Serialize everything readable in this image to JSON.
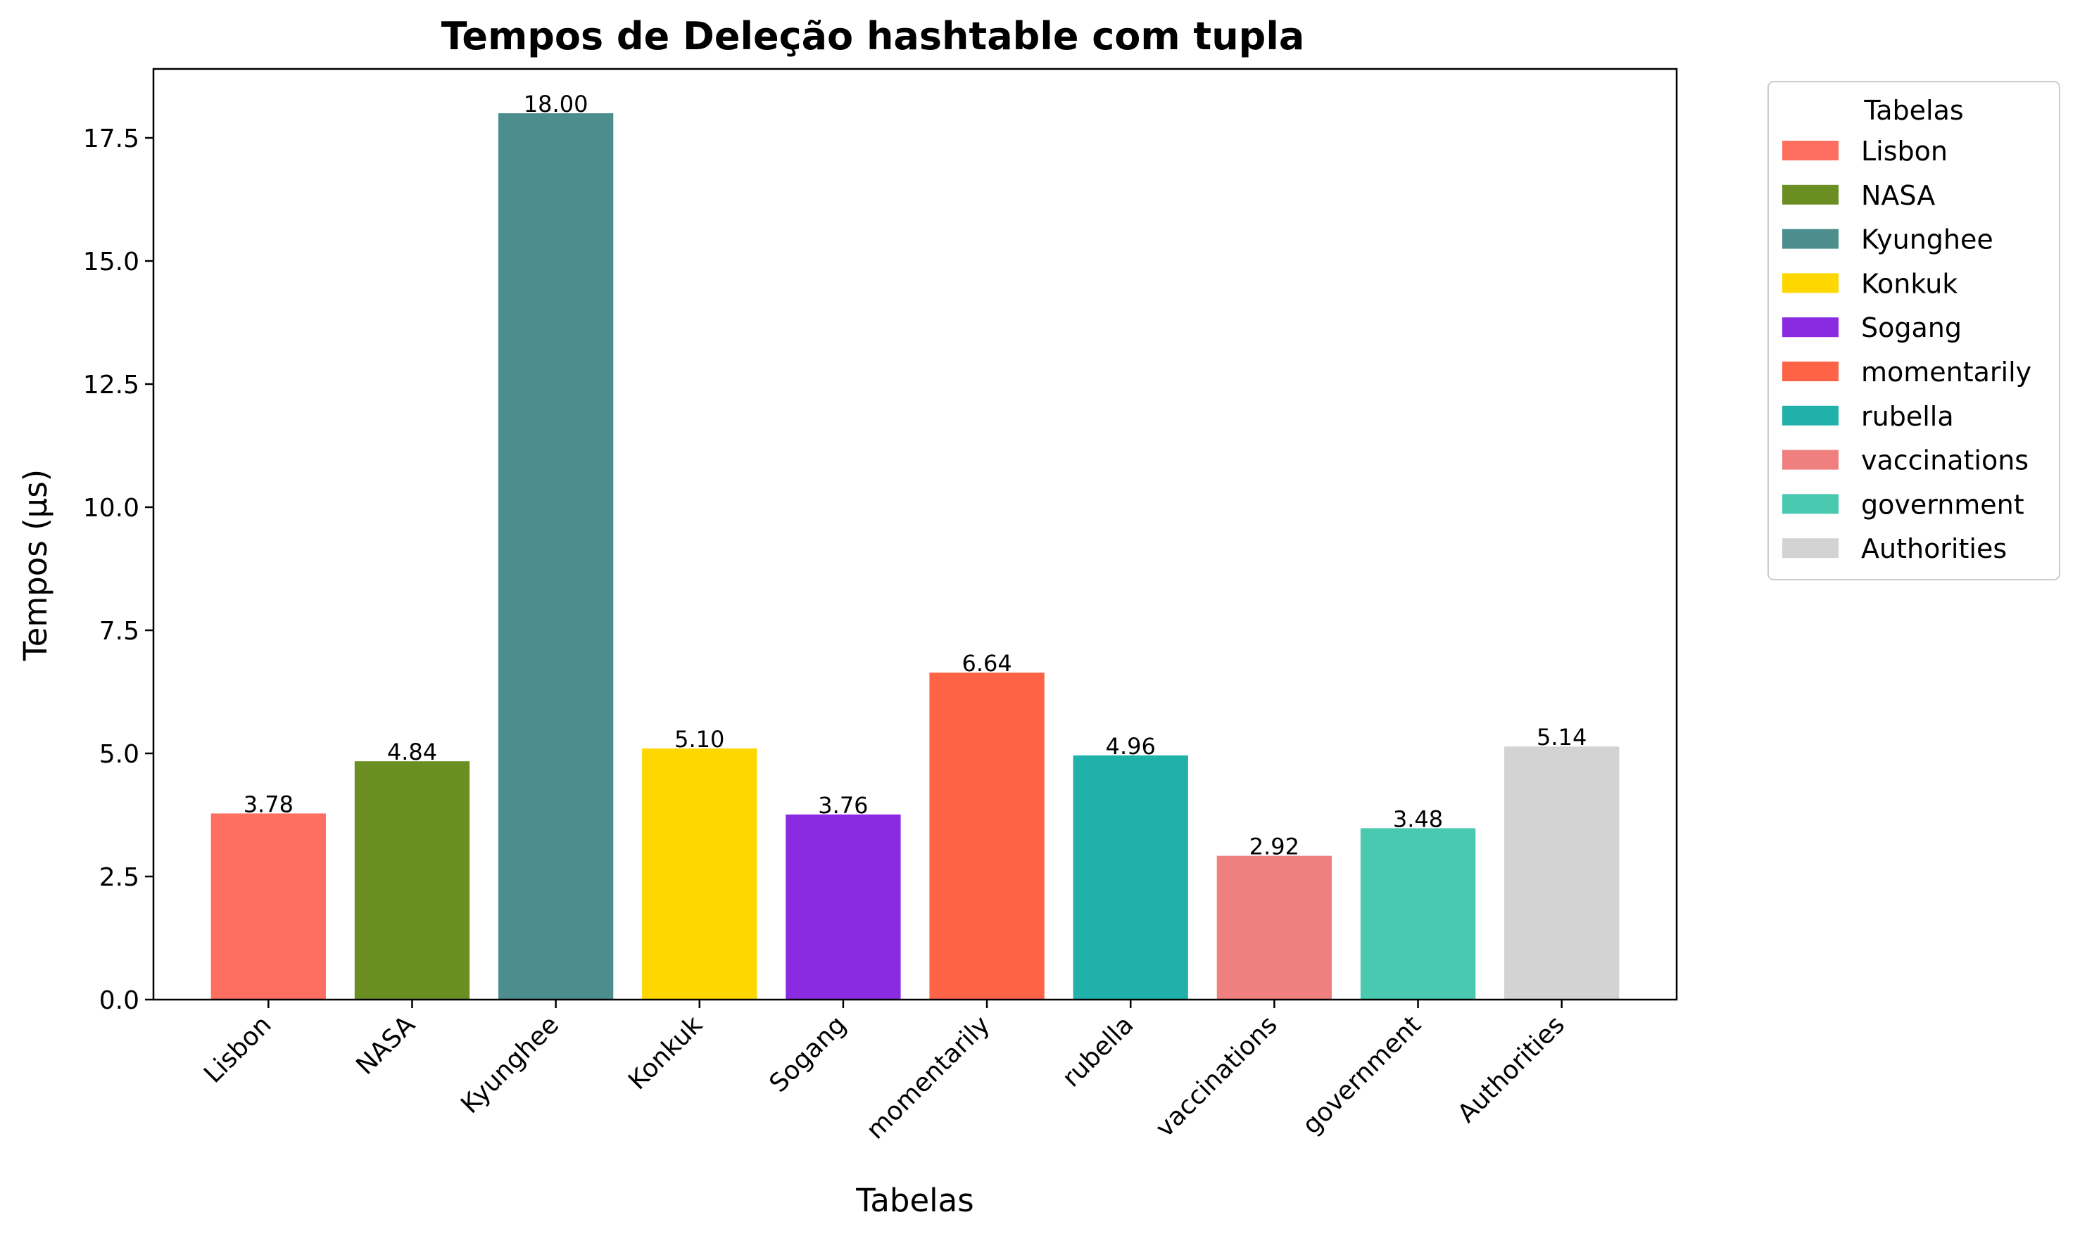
{
  "chart_data": {
    "type": "bar",
    "title": "Tempos de Deleção hashtable com tupla",
    "xlabel": "Tabelas",
    "ylabel": "Tempos (µs)",
    "ylim": [
      0,
      18.9
    ],
    "yticks": [
      "0.0",
      "2.5",
      "5.0",
      "7.5",
      "10.0",
      "12.5",
      "15.0",
      "17.5"
    ],
    "categories": [
      "Lisbon",
      "NASA",
      "Kyunghee",
      "Konkuk",
      "Sogang",
      "momentarily",
      "rubella",
      "vaccinations",
      "government",
      "Authorities"
    ],
    "values": [
      3.78,
      4.84,
      18.0,
      5.1,
      3.76,
      6.64,
      4.96,
      2.92,
      3.48,
      5.14
    ],
    "value_labels": [
      "3.78",
      "4.84",
      "18.00",
      "5.10",
      "3.76",
      "6.64",
      "4.96",
      "2.92",
      "3.48",
      "5.14"
    ],
    "colors": [
      "#ff6f61",
      "#6b8e23",
      "#4b8e8d",
      "#ffd700",
      "#8a2be2",
      "#ff6347",
      "#20b2aa",
      "#f08080",
      "#48c9b0",
      "#d3d3d3"
    ],
    "grid": false,
    "legend": {
      "title": "Tabelas",
      "placement": "outside-top-right",
      "entries": [
        "Lisbon",
        "NASA",
        "Kyunghee",
        "Konkuk",
        "Sogang",
        "momentarily",
        "rubella",
        "vaccinations",
        "government",
        "Authorities"
      ]
    }
  }
}
